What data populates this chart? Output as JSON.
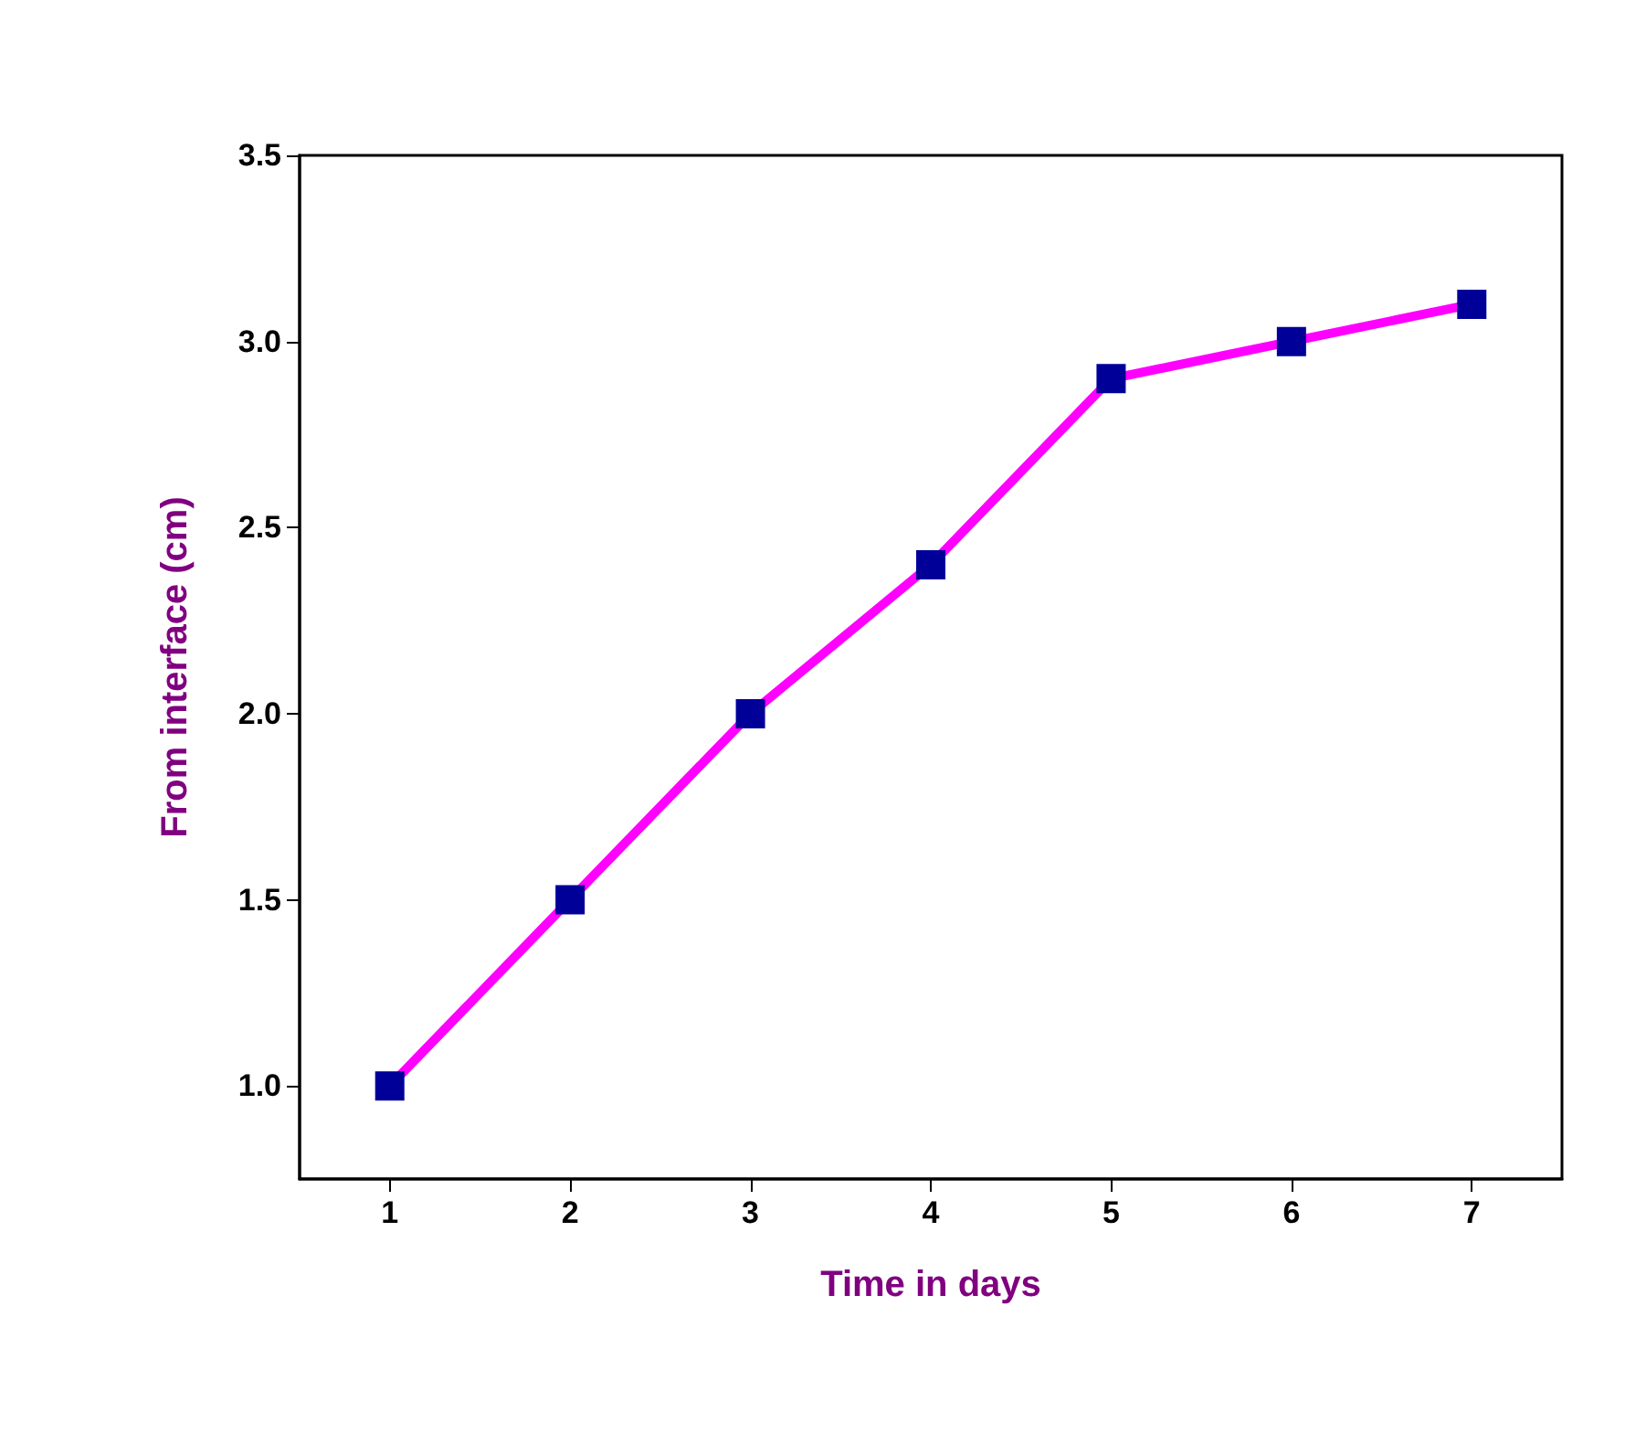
{
  "chart_data": {
    "type": "line",
    "xlabel": "Time in days",
    "ylabel": "From interface (cm)",
    "x": [
      1,
      2,
      3,
      4,
      5,
      6,
      7
    ],
    "series": [
      {
        "color": "#ff00ff",
        "colors": [
          "#000099",
          "#000099",
          "#000099",
          "#000099",
          "#000099",
          "#000099",
          "#000099"
        ],
        "values": [
          1.0,
          1.5,
          2.0,
          2.4,
          2.9,
          3.0,
          3.1
        ]
      }
    ],
    "xlim": [
      0.5,
      7.5
    ],
    "xticks": [
      1,
      2,
      3,
      4,
      5,
      6,
      7
    ],
    "ylim": [
      0.75,
      3.5
    ],
    "yticks": [
      {
        "value": 1,
        "label": "1.0"
      },
      {
        "value": 1.5,
        "label": "1.5"
      },
      {
        "value": 2,
        "label": "2.0"
      },
      {
        "value": 2.5,
        "label": "2.5"
      },
      {
        "value": 3,
        "label": "3.0"
      },
      {
        "value": 3.5,
        "label": "3.5"
      }
    ],
    "marker": "square",
    "line_style": "solid",
    "grid": false
  }
}
